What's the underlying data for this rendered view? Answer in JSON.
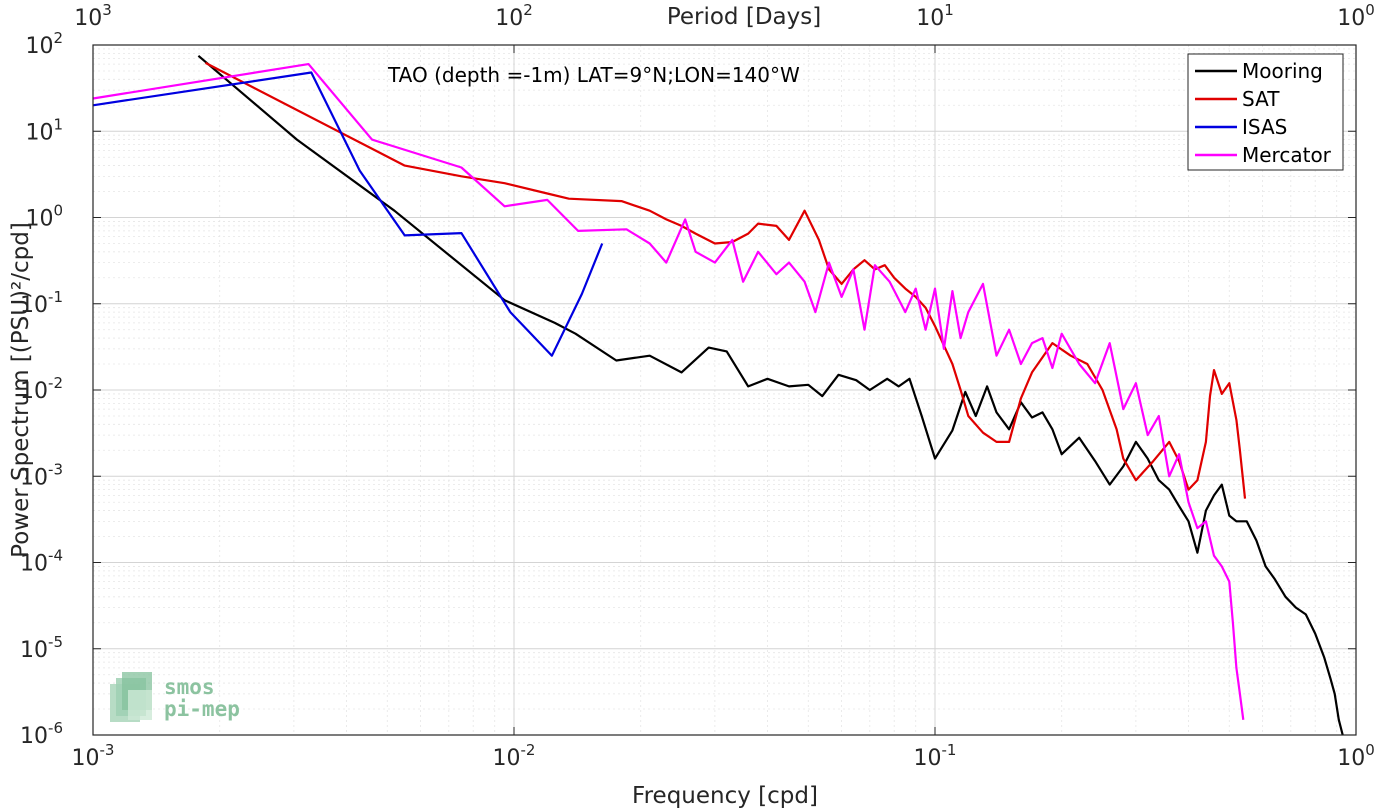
{
  "chart_data": {
    "type": "line",
    "title": "TAO (depth =-1m) LAT=9°N;LON=140°W",
    "xlabel": "Frequency [cpd]",
    "ylabel": "Power Spectrum [(PSU)²/cpd]",
    "top_xlabel": "Period [Days]",
    "xscale": "log",
    "yscale": "log",
    "xlim": [
      0.001,
      1
    ],
    "ylim": [
      1e-06,
      100
    ],
    "grid": true,
    "legend_position": "top-right",
    "x_ticks": [
      {
        "v": 0.001,
        "label": "10",
        "exp": "-3"
      },
      {
        "v": 0.01,
        "label": "10",
        "exp": "-2"
      },
      {
        "v": 0.1,
        "label": "10",
        "exp": "-1"
      },
      {
        "v": 1,
        "label": "10",
        "exp": "0"
      }
    ],
    "top_ticks": [
      {
        "v": 0.001,
        "label": "10",
        "exp": "3"
      },
      {
        "v": 0.01,
        "label": "10",
        "exp": "2"
      },
      {
        "v": 0.1,
        "label": "10",
        "exp": "1"
      },
      {
        "v": 1,
        "label": "10",
        "exp": "0"
      }
    ],
    "y_ticks": [
      {
        "v": 100,
        "label": "10",
        "exp": "2"
      },
      {
        "v": 10,
        "label": "10",
        "exp": "1"
      },
      {
        "v": 1,
        "label": "10",
        "exp": "0"
      },
      {
        "v": 0.1,
        "label": "10",
        "exp": "-1"
      },
      {
        "v": 0.01,
        "label": "10",
        "exp": "-2"
      },
      {
        "v": 0.001,
        "label": "10",
        "exp": "-3"
      },
      {
        "v": 0.0001,
        "label": "10",
        "exp": "-4"
      },
      {
        "v": 1e-05,
        "label": "10",
        "exp": "-5"
      },
      {
        "v": 1e-06,
        "label": "10",
        "exp": "-6"
      }
    ],
    "series": [
      {
        "name": "Mooring",
        "color": "#000000",
        "points": [
          [
            0.00178,
            75
          ],
          [
            0.00305,
            8
          ],
          [
            0.0052,
            1.2
          ],
          [
            0.0095,
            0.11
          ],
          [
            0.0125,
            0.06
          ],
          [
            0.014,
            0.045
          ],
          [
            0.0175,
            0.022
          ],
          [
            0.021,
            0.025
          ],
          [
            0.025,
            0.016
          ],
          [
            0.029,
            0.031
          ],
          [
            0.032,
            0.028
          ],
          [
            0.036,
            0.011
          ],
          [
            0.04,
            0.0135
          ],
          [
            0.045,
            0.011
          ],
          [
            0.05,
            0.0115
          ],
          [
            0.054,
            0.0085
          ],
          [
            0.059,
            0.015
          ],
          [
            0.065,
            0.013
          ],
          [
            0.07,
            0.01
          ],
          [
            0.077,
            0.0135
          ],
          [
            0.082,
            0.011
          ],
          [
            0.087,
            0.0135
          ],
          [
            0.093,
            0.005
          ],
          [
            0.1,
            0.0016
          ],
          [
            0.11,
            0.0034
          ],
          [
            0.118,
            0.0095
          ],
          [
            0.125,
            0.005
          ],
          [
            0.133,
            0.011
          ],
          [
            0.14,
            0.0055
          ],
          [
            0.15,
            0.0035
          ],
          [
            0.16,
            0.0072
          ],
          [
            0.17,
            0.0048
          ],
          [
            0.18,
            0.0055
          ],
          [
            0.19,
            0.0035
          ],
          [
            0.2,
            0.0018
          ],
          [
            0.22,
            0.0028
          ],
          [
            0.24,
            0.0015
          ],
          [
            0.26,
            0.0008
          ],
          [
            0.28,
            0.0013
          ],
          [
            0.3,
            0.0025
          ],
          [
            0.32,
            0.0016
          ],
          [
            0.34,
            0.0009
          ],
          [
            0.36,
            0.0007
          ],
          [
            0.38,
            0.00045
          ],
          [
            0.4,
            0.0003
          ],
          [
            0.42,
            0.00013
          ],
          [
            0.44,
            0.0004
          ],
          [
            0.46,
            0.0006
          ],
          [
            0.48,
            0.0008
          ],
          [
            0.5,
            0.00035
          ],
          [
            0.52,
            0.0003
          ],
          [
            0.55,
            0.0003
          ],
          [
            0.58,
            0.00018
          ],
          [
            0.61,
            9e-05
          ],
          [
            0.64,
            6.5e-05
          ],
          [
            0.68,
            4e-05
          ],
          [
            0.72,
            3e-05
          ],
          [
            0.76,
            2.5e-05
          ],
          [
            0.8,
            1.5e-05
          ],
          [
            0.84,
            8e-06
          ],
          [
            0.87,
            4.5e-06
          ],
          [
            0.89,
            3e-06
          ],
          [
            0.91,
            1.5e-06
          ],
          [
            0.93,
            1e-06
          ]
        ]
      },
      {
        "name": "SAT",
        "color": "#e00000",
        "points": [
          [
            0.00185,
            62
          ],
          [
            0.0055,
            4
          ],
          [
            0.0075,
            3
          ],
          [
            0.0095,
            2.5
          ],
          [
            0.012,
            1.9
          ],
          [
            0.0135,
            1.65
          ],
          [
            0.018,
            1.55
          ],
          [
            0.021,
            1.2
          ],
          [
            0.023,
            0.95
          ],
          [
            0.025,
            0.8
          ],
          [
            0.027,
            0.65
          ],
          [
            0.03,
            0.5
          ],
          [
            0.033,
            0.52
          ],
          [
            0.036,
            0.65
          ],
          [
            0.038,
            0.85
          ],
          [
            0.042,
            0.8
          ],
          [
            0.045,
            0.55
          ],
          [
            0.049,
            1.2
          ],
          [
            0.053,
            0.55
          ],
          [
            0.056,
            0.25
          ],
          [
            0.06,
            0.17
          ],
          [
            0.064,
            0.25
          ],
          [
            0.068,
            0.32
          ],
          [
            0.072,
            0.25
          ],
          [
            0.076,
            0.28
          ],
          [
            0.08,
            0.2
          ],
          [
            0.085,
            0.15
          ],
          [
            0.09,
            0.12
          ],
          [
            0.095,
            0.09
          ],
          [
            0.1,
            0.055
          ],
          [
            0.11,
            0.02
          ],
          [
            0.115,
            0.01
          ],
          [
            0.12,
            0.005
          ],
          [
            0.13,
            0.0032
          ],
          [
            0.14,
            0.0025
          ],
          [
            0.15,
            0.0025
          ],
          [
            0.16,
            0.008
          ],
          [
            0.17,
            0.016
          ],
          [
            0.19,
            0.035
          ],
          [
            0.21,
            0.025
          ],
          [
            0.23,
            0.02
          ],
          [
            0.25,
            0.01
          ],
          [
            0.27,
            0.0035
          ],
          [
            0.28,
            0.0016
          ],
          [
            0.3,
            0.0009
          ],
          [
            0.33,
            0.0015
          ],
          [
            0.36,
            0.0025
          ],
          [
            0.38,
            0.0015
          ],
          [
            0.4,
            0.0007
          ],
          [
            0.42,
            0.0009
          ],
          [
            0.44,
            0.0025
          ],
          [
            0.45,
            0.0085
          ],
          [
            0.46,
            0.017
          ],
          [
            0.48,
            0.009
          ],
          [
            0.5,
            0.012
          ],
          [
            0.52,
            0.0045
          ],
          [
            0.53,
            0.002
          ],
          [
            0.545,
            0.00055
          ]
        ]
      },
      {
        "name": "ISAS",
        "color": "#0000e0",
        "points": [
          [
            0.001,
            20
          ],
          [
            0.0033,
            48
          ],
          [
            0.0043,
            3.5
          ],
          [
            0.0055,
            0.62
          ],
          [
            0.0075,
            0.66
          ],
          [
            0.0098,
            0.08
          ],
          [
            0.0123,
            0.025
          ],
          [
            0.0145,
            0.13
          ],
          [
            0.0162,
            0.5
          ]
        ]
      },
      {
        "name": "Mercator",
        "color": "#ff00ff",
        "points": [
          [
            0.001,
            24
          ],
          [
            0.00325,
            60
          ],
          [
            0.0046,
            8
          ],
          [
            0.0075,
            3.8
          ],
          [
            0.0095,
            1.35
          ],
          [
            0.012,
            1.6
          ],
          [
            0.0142,
            0.7
          ],
          [
            0.0185,
            0.73
          ],
          [
            0.021,
            0.5
          ],
          [
            0.023,
            0.3
          ],
          [
            0.0255,
            0.95
          ],
          [
            0.027,
            0.4
          ],
          [
            0.03,
            0.3
          ],
          [
            0.033,
            0.55
          ],
          [
            0.035,
            0.18
          ],
          [
            0.038,
            0.4
          ],
          [
            0.042,
            0.22
          ],
          [
            0.045,
            0.3
          ],
          [
            0.049,
            0.18
          ],
          [
            0.052,
            0.08
          ],
          [
            0.056,
            0.3
          ],
          [
            0.06,
            0.12
          ],
          [
            0.064,
            0.25
          ],
          [
            0.068,
            0.05
          ],
          [
            0.072,
            0.28
          ],
          [
            0.078,
            0.18
          ],
          [
            0.085,
            0.08
          ],
          [
            0.09,
            0.15
          ],
          [
            0.095,
            0.05
          ],
          [
            0.1,
            0.15
          ],
          [
            0.105,
            0.03
          ],
          [
            0.11,
            0.14
          ],
          [
            0.115,
            0.04
          ],
          [
            0.12,
            0.08
          ],
          [
            0.13,
            0.17
          ],
          [
            0.14,
            0.025
          ],
          [
            0.15,
            0.05
          ],
          [
            0.16,
            0.02
          ],
          [
            0.17,
            0.035
          ],
          [
            0.18,
            0.04
          ],
          [
            0.19,
            0.018
          ],
          [
            0.2,
            0.045
          ],
          [
            0.22,
            0.02
          ],
          [
            0.24,
            0.012
          ],
          [
            0.26,
            0.035
          ],
          [
            0.28,
            0.006
          ],
          [
            0.3,
            0.012
          ],
          [
            0.32,
            0.003
          ],
          [
            0.34,
            0.005
          ],
          [
            0.36,
            0.001
          ],
          [
            0.38,
            0.0018
          ],
          [
            0.4,
            0.0005
          ],
          [
            0.42,
            0.00025
          ],
          [
            0.44,
            0.0003
          ],
          [
            0.46,
            0.00012
          ],
          [
            0.48,
            9e-05
          ],
          [
            0.5,
            6e-05
          ],
          [
            0.51,
            2e-05
          ],
          [
            0.52,
            6e-06
          ],
          [
            0.53,
            3e-06
          ],
          [
            0.54,
            1.5e-06
          ]
        ]
      }
    ]
  },
  "logo": {
    "line1": "smos",
    "line2": "pi-mep"
  }
}
